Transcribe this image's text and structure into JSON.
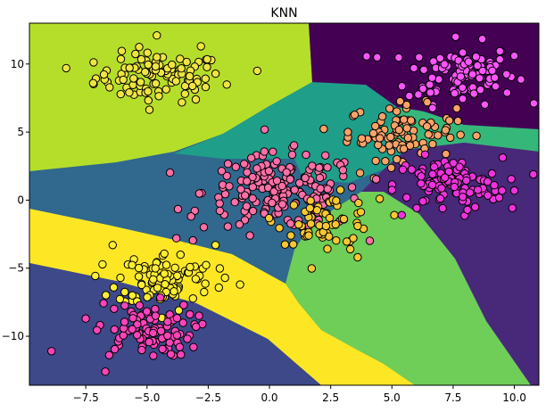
{
  "chart_data": {
    "type": "scatter",
    "title": "KNN",
    "xlabel": "",
    "ylabel": "",
    "xlim": [
      -9.8,
      11.0
    ],
    "ylim": [
      -13.6,
      13.0
    ],
    "x_ticks": [
      -7.5,
      -5.0,
      -2.5,
      0.0,
      2.5,
      5.0,
      7.5,
      10.0
    ],
    "y_ticks": [
      10,
      5,
      0,
      -5,
      -10
    ],
    "x_tick_labels": [
      "−7.5",
      "−5.0",
      "−2.5",
      "0.0",
      "2.5",
      "5.0",
      "7.5",
      "10.0"
    ],
    "y_tick_labels": [
      "10",
      "5",
      "0",
      "−5",
      "−10"
    ],
    "grid": false,
    "point_edge_color": "#000000",
    "series": [
      {
        "color": "#f0e442",
        "center": [
          -4.5,
          9.0
        ],
        "spread": [
          1.3,
          0.9
        ],
        "n": 100,
        "points": [
          [
            -8.3,
            9.7
          ],
          [
            -0.5,
            9.5
          ],
          [
            -4.6,
            12.1
          ],
          [
            -7.2,
            8.6
          ],
          [
            -2.8,
            11.3
          ]
        ]
      },
      {
        "color": "#ff55ff",
        "center": [
          7.8,
          9.3
        ],
        "spread": [
          1.1,
          1.1
        ],
        "n": 100,
        "points": [
          [
            4.4,
            10.5
          ],
          [
            10.0,
            10.6
          ],
          [
            7.6,
            12.0
          ],
          [
            9.2,
            9.0
          ],
          [
            5.9,
            9.7
          ]
        ]
      },
      {
        "color": "#fca267",
        "center": [
          5.4,
          5.0
        ],
        "spread": [
          1.1,
          1.0
        ],
        "n": 90,
        "points": [
          [
            3.2,
            5.0
          ],
          [
            7.8,
            4.8
          ],
          [
            5.6,
            7.0
          ],
          [
            5.2,
            3.0
          ],
          [
            3.7,
            2.0
          ]
        ]
      },
      {
        "color": "#ff6fa8",
        "center": [
          0.5,
          0.6
        ],
        "spread": [
          1.6,
          1.4
        ],
        "n": 180,
        "points": [
          [
            -3.2,
            -1.2
          ],
          [
            -3.8,
            -2.8
          ],
          [
            3.0,
            2.2
          ],
          [
            -0.8,
            -2.6
          ],
          [
            2.7,
            -1.8
          ]
        ]
      },
      {
        "color": "#f8c832",
        "center": [
          2.3,
          -1.4
        ],
        "spread": [
          1.0,
          0.9
        ],
        "n": 60,
        "points": [
          [
            3.6,
            -4.2
          ],
          [
            4.5,
            0.1
          ],
          [
            5.1,
            -1.1
          ],
          [
            3.3,
            -3.6
          ],
          [
            1.6,
            -2.6
          ]
        ]
      },
      {
        "color": "#ee33dd",
        "center": [
          7.3,
          1.1
        ],
        "spread": [
          1.1,
          1.0
        ],
        "n": 100,
        "points": [
          [
            9.5,
            0.7
          ],
          [
            10.0,
            0.7
          ],
          [
            5.6,
            0.2
          ],
          [
            5.4,
            -1.1
          ],
          [
            8.4,
            -0.5
          ]
        ]
      },
      {
        "color": "#ffee33",
        "center": [
          -4.2,
          -5.8
        ],
        "spread": [
          1.0,
          1.0
        ],
        "n": 90,
        "points": [
          [
            -1.2,
            -6.2
          ],
          [
            -6.4,
            -3.3
          ],
          [
            -5.6,
            -7.0
          ],
          [
            -2.2,
            -3.3
          ],
          [
            -3.7,
            -8.1
          ]
        ]
      },
      {
        "color": "#ff44bb",
        "center": [
          -5.1,
          -9.5
        ],
        "spread": [
          1.0,
          1.0
        ],
        "n": 90,
        "points": [
          [
            -8.9,
            -11.1
          ],
          [
            -6.7,
            -12.6
          ],
          [
            -3.0,
            -9.3
          ],
          [
            -7.5,
            -8.7
          ],
          [
            -3.1,
            -10.8
          ]
        ]
      }
    ]
  }
}
